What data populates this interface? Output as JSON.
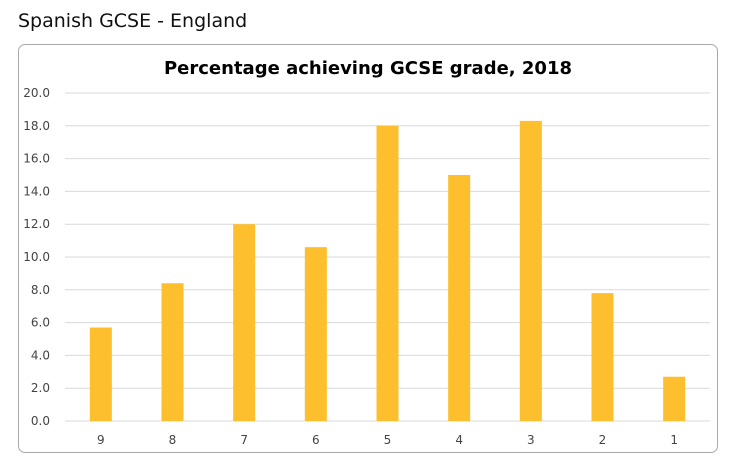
{
  "page": {
    "heading": "Spanish GCSE - England"
  },
  "chart_data": {
    "type": "bar",
    "title": "Percentage achieving GCSE grade, 2018",
    "xlabel": "",
    "ylabel": "",
    "categories": [
      "9",
      "8",
      "7",
      "6",
      "5",
      "4",
      "3",
      "2",
      "1"
    ],
    "values": [
      5.7,
      8.4,
      12.0,
      10.6,
      18.0,
      15.0,
      18.3,
      7.8,
      2.7
    ],
    "ylim": [
      0,
      20
    ],
    "yticks": [
      "0.0",
      "2.0",
      "4.0",
      "6.0",
      "8.0",
      "10.0",
      "12.0",
      "14.0",
      "16.0",
      "18.0",
      "20.0"
    ],
    "grid": true,
    "legend": "none",
    "bar_color": "#FDBF2D",
    "grid_color": "#D9D9D9"
  }
}
